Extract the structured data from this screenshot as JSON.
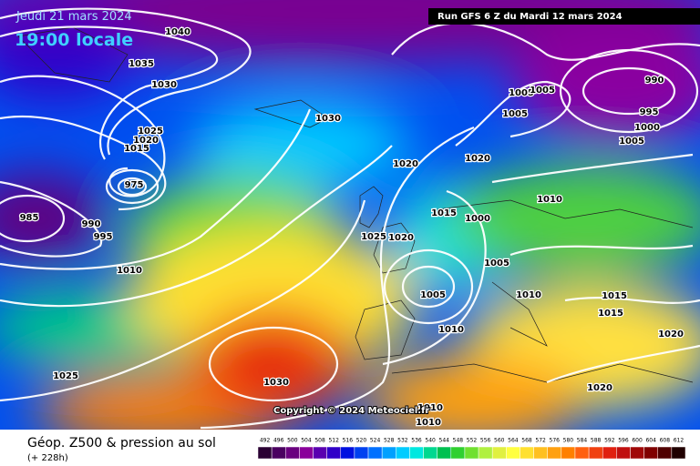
{
  "header": {
    "date": "Jeudi 21 mars 2024",
    "time": "19:00 locale",
    "run": "Run GFS 6 Z du Mardi 12 mars 2024"
  },
  "footer": {
    "title": "Géop. Z500 & pression au sol",
    "lead": "(+ 228h)",
    "copyright": "Copyright © 2024 Meteociel.fr"
  },
  "legend": {
    "labels": [
      492,
      496,
      500,
      504,
      508,
      512,
      516,
      520,
      524,
      528,
      532,
      536,
      540,
      544,
      548,
      552,
      556,
      560,
      564,
      568,
      572,
      576,
      580,
      584,
      588,
      592,
      596,
      600,
      604,
      608,
      612
    ],
    "colors": [
      "#2a0033",
      "#4a0060",
      "#6a007f",
      "#8a009a",
      "#5a00b0",
      "#3000c8",
      "#0010e0",
      "#0040f0",
      "#0070ff",
      "#00a0ff",
      "#00ccff",
      "#00e8e0",
      "#00d890",
      "#00c050",
      "#30d030",
      "#70e030",
      "#b0f040",
      "#e0f040",
      "#ffff40",
      "#ffe030",
      "#ffc020",
      "#ffa010",
      "#ff8000",
      "#ff6010",
      "#f04010",
      "#e02010",
      "#c01010",
      "#a00808",
      "#800000",
      "#500000",
      "#200000"
    ]
  },
  "isobar_labels": [
    1040,
    1035,
    1030,
    1025,
    1020,
    1015,
    975,
    985,
    990,
    995,
    1010,
    1025,
    1030,
    1030,
    1020,
    1020,
    1015,
    1000,
    1025,
    1020,
    1005,
    1010,
    1005,
    1010,
    1010,
    1005,
    1005,
    1005,
    990,
    995,
    1000,
    1005,
    1015,
    1015,
    1020,
    1020,
    1010,
    1010
  ]
}
